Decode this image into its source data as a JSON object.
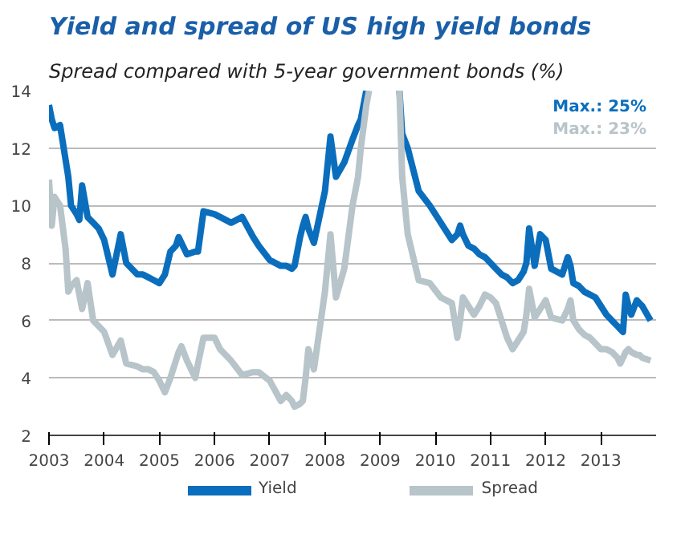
{
  "chart_data": {
    "type": "line",
    "title": "Yield and spread of US high yield bonds",
    "subtitle": "Spread compared with 5-year government bonds (%)",
    "x": [
      2003.0,
      2003.05,
      2003.1,
      2003.2,
      2003.3,
      2003.35,
      2003.4,
      2003.5,
      2003.55,
      2003.6,
      2003.7,
      2003.8,
      2003.9,
      2004.0,
      2004.15,
      2004.3,
      2004.4,
      2004.6,
      2004.7,
      2004.8,
      2004.9,
      2005.0,
      2005.1,
      2005.2,
      2005.3,
      2005.35,
      2005.4,
      2005.5,
      2005.65,
      2005.7,
      2005.8,
      2006.0,
      2006.1,
      2006.3,
      2006.5,
      2006.7,
      2006.8,
      2007.0,
      2007.2,
      2007.3,
      2007.4,
      2007.45,
      2007.55,
      2007.6,
      2007.65,
      2007.7,
      2007.8,
      2008.0,
      2008.1,
      2008.2,
      2008.35,
      2008.5,
      2008.6,
      2008.65,
      2008.75,
      2008.8,
      2009.0,
      2009.2,
      2009.35,
      2009.4,
      2009.5,
      2009.7,
      2009.9,
      2010.1,
      2010.3,
      2010.4,
      2010.45,
      2010.5,
      2010.6,
      2010.7,
      2010.8,
      2010.9,
      2011.0,
      2011.1,
      2011.2,
      2011.3,
      2011.4,
      2011.5,
      2011.6,
      2011.65,
      2011.7,
      2011.8,
      2011.9,
      2012.0,
      2012.1,
      2012.3,
      2012.4,
      2012.45,
      2012.5,
      2012.6,
      2012.7,
      2012.8,
      2012.9,
      2013.0,
      2013.1,
      2013.2,
      2013.3,
      2013.35,
      2013.4,
      2013.45,
      2013.5,
      2013.55,
      2013.65,
      2013.7,
      2013.75,
      2013.9
    ],
    "series": [
      {
        "name": "Yield",
        "color": "#0a6ebd",
        "values": [
          13.5,
          13.0,
          12.7,
          12.8,
          11.6,
          11.0,
          10.0,
          9.7,
          9.5,
          10.7,
          9.6,
          9.4,
          9.2,
          8.8,
          7.6,
          9.0,
          8.0,
          7.6,
          7.6,
          7.5,
          7.4,
          7.3,
          7.6,
          8.4,
          8.6,
          8.9,
          8.7,
          8.3,
          8.4,
          8.4,
          9.8,
          9.7,
          9.6,
          9.4,
          9.6,
          8.9,
          8.6,
          8.1,
          7.9,
          7.9,
          7.8,
          7.9,
          8.9,
          9.3,
          9.6,
          9.2,
          8.7,
          10.5,
          12.4,
          11.0,
          11.5,
          12.3,
          12.8,
          13.0,
          14.0,
          null,
          null,
          null,
          14.0,
          12.5,
          12.0,
          10.5,
          10.0,
          9.4,
          8.8,
          9.0,
          9.3,
          9.0,
          8.6,
          8.5,
          8.3,
          8.2,
          8.0,
          7.8,
          7.6,
          7.5,
          7.3,
          7.4,
          7.7,
          8.0,
          9.2,
          7.9,
          9.0,
          8.8,
          7.8,
          7.6,
          8.2,
          7.9,
          7.3,
          7.2,
          7.0,
          6.9,
          6.8,
          6.5,
          6.2,
          6.0,
          5.8,
          5.7,
          5.6,
          6.9,
          6.5,
          6.2,
          6.7,
          6.6,
          6.5,
          6.0
        ]
      },
      {
        "name": "Spread",
        "color": "#b7c4c9",
        "values": [
          10.9,
          9.3,
          10.3,
          10.0,
          8.5,
          7.0,
          7.2,
          7.4,
          6.9,
          6.4,
          7.3,
          6.0,
          5.8,
          5.6,
          4.8,
          5.3,
          4.5,
          4.4,
          4.3,
          4.3,
          4.2,
          3.9,
          3.5,
          4.0,
          4.6,
          4.9,
          5.1,
          4.6,
          4.0,
          4.5,
          5.4,
          5.4,
          5.0,
          4.6,
          4.1,
          4.2,
          4.2,
          3.9,
          3.2,
          3.4,
          3.2,
          3.0,
          3.1,
          3.2,
          4.0,
          5.0,
          4.3,
          7.0,
          9.0,
          6.8,
          7.8,
          10.0,
          11.0,
          12.0,
          13.5,
          14.0,
          null,
          null,
          14.0,
          11.0,
          9.0,
          7.4,
          7.3,
          6.8,
          6.6,
          5.4,
          6.0,
          6.8,
          6.5,
          6.2,
          6.5,
          6.9,
          6.8,
          6.6,
          6.0,
          5.4,
          5.0,
          5.3,
          5.6,
          6.2,
          7.1,
          6.1,
          6.4,
          6.7,
          6.1,
          6.0,
          6.4,
          6.7,
          6.0,
          5.7,
          5.5,
          5.4,
          5.2,
          5.0,
          5.0,
          4.9,
          4.7,
          4.5,
          4.7,
          4.9,
          5.0,
          4.9,
          4.8,
          4.8,
          4.7,
          4.6
        ]
      }
    ],
    "xlim": [
      2003,
      2014
    ],
    "xticks": [
      2003,
      2004,
      2005,
      2006,
      2007,
      2008,
      2009,
      2010,
      2011,
      2012,
      2013
    ],
    "ylim": [
      2,
      14
    ],
    "yticks": [
      2,
      4,
      6,
      8,
      10,
      12,
      14
    ],
    "grid": "y",
    "legend": "bottom",
    "line_style": "solid",
    "marker": "none",
    "annotations": [
      "Max.: 25%",
      "Max.: 23%"
    ]
  }
}
